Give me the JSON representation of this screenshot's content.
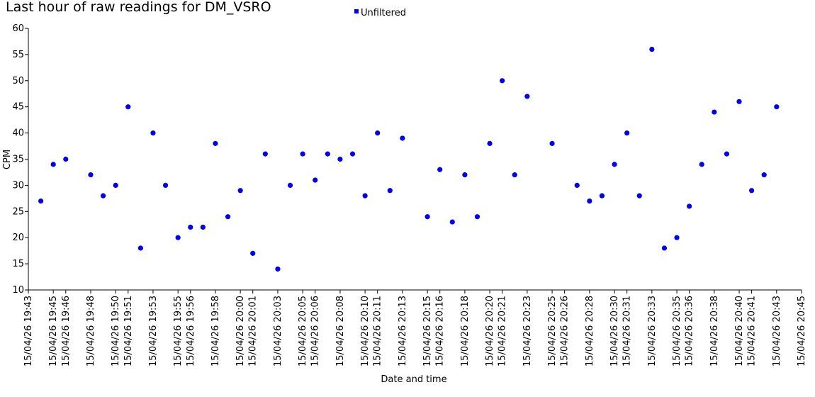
{
  "chart_data": {
    "type": "scatter",
    "title": "Last hour of raw readings for DM_VSRO",
    "xlabel": "Date and time",
    "ylabel": "CPM",
    "ylim": [
      10,
      60
    ],
    "yticks": [
      10,
      15,
      20,
      25,
      30,
      35,
      40,
      45,
      50,
      55,
      60
    ],
    "xticks": [
      "15/04/26 19:43",
      "15/04/26 19:45",
      "15/04/26 19:46",
      "15/04/26 19:48",
      "15/04/26 19:50",
      "15/04/26 19:51",
      "15/04/26 19:53",
      "15/04/26 19:55",
      "15/04/26 19:56",
      "15/04/26 19:58",
      "15/04/26 20:00",
      "15/04/26 20:01",
      "15/04/26 20:03",
      "15/04/26 20:05",
      "15/04/26 20:06",
      "15/04/26 20:08",
      "15/04/26 20:10",
      "15/04/26 20:11",
      "15/04/26 20:13",
      "15/04/26 20:15",
      "15/04/26 20:16",
      "15/04/26 20:18",
      "15/04/26 20:20",
      "15/04/26 20:21",
      "15/04/26 20:23",
      "15/04/26 20:25",
      "15/04/26 20:26",
      "15/04/26 20:28",
      "15/04/26 20:30",
      "15/04/26 20:31",
      "15/04/26 20:33",
      "15/04/26 20:35",
      "15/04/26 20:36",
      "15/04/26 20:38",
      "15/04/26 20:40",
      "15/04/26 20:41",
      "15/04/26 20:43",
      "15/04/26 20:45"
    ],
    "xlim": [
      "2026-04-15 19:43:00",
      "2026-04-15 20:45:00"
    ],
    "grid": false,
    "legend_position": "top-center",
    "series": [
      {
        "name": "Unfiltered",
        "color": "#0000ee",
        "points": [
          {
            "x": "2026-04-15 19:44:00",
            "y": 27
          },
          {
            "x": "2026-04-15 19:45:00",
            "y": 34
          },
          {
            "x": "2026-04-15 19:46:00",
            "y": 35
          },
          {
            "x": "2026-04-15 19:48:00",
            "y": 32
          },
          {
            "x": "2026-04-15 19:49:00",
            "y": 28
          },
          {
            "x": "2026-04-15 19:50:00",
            "y": 30
          },
          {
            "x": "2026-04-15 19:51:00",
            "y": 45
          },
          {
            "x": "2026-04-15 19:52:00",
            "y": 18
          },
          {
            "x": "2026-04-15 19:53:00",
            "y": 40
          },
          {
            "x": "2026-04-15 19:54:00",
            "y": 30
          },
          {
            "x": "2026-04-15 19:55:00",
            "y": 20
          },
          {
            "x": "2026-04-15 19:56:00",
            "y": 22
          },
          {
            "x": "2026-04-15 19:57:00",
            "y": 22
          },
          {
            "x": "2026-04-15 19:58:00",
            "y": 38
          },
          {
            "x": "2026-04-15 19:59:00",
            "y": 24
          },
          {
            "x": "2026-04-15 20:00:00",
            "y": 29
          },
          {
            "x": "2026-04-15 20:01:00",
            "y": 17
          },
          {
            "x": "2026-04-15 20:02:00",
            "y": 36
          },
          {
            "x": "2026-04-15 20:03:00",
            "y": 14
          },
          {
            "x": "2026-04-15 20:04:00",
            "y": 30
          },
          {
            "x": "2026-04-15 20:05:00",
            "y": 36
          },
          {
            "x": "2026-04-15 20:06:00",
            "y": 31
          },
          {
            "x": "2026-04-15 20:07:00",
            "y": 36
          },
          {
            "x": "2026-04-15 20:08:00",
            "y": 35
          },
          {
            "x": "2026-04-15 20:09:00",
            "y": 36
          },
          {
            "x": "2026-04-15 20:10:00",
            "y": 28
          },
          {
            "x": "2026-04-15 20:11:00",
            "y": 40
          },
          {
            "x": "2026-04-15 20:12:00",
            "y": 29
          },
          {
            "x": "2026-04-15 20:13:00",
            "y": 39
          },
          {
            "x": "2026-04-15 20:15:00",
            "y": 24
          },
          {
            "x": "2026-04-15 20:16:00",
            "y": 33
          },
          {
            "x": "2026-04-15 20:17:00",
            "y": 23
          },
          {
            "x": "2026-04-15 20:18:00",
            "y": 32
          },
          {
            "x": "2026-04-15 20:19:00",
            "y": 24
          },
          {
            "x": "2026-04-15 20:20:00",
            "y": 38
          },
          {
            "x": "2026-04-15 20:21:00",
            "y": 50
          },
          {
            "x": "2026-04-15 20:22:00",
            "y": 32
          },
          {
            "x": "2026-04-15 20:23:00",
            "y": 47
          },
          {
            "x": "2026-04-15 20:25:00",
            "y": 38
          },
          {
            "x": "2026-04-15 20:27:00",
            "y": 30
          },
          {
            "x": "2026-04-15 20:28:00",
            "y": 27
          },
          {
            "x": "2026-04-15 20:29:00",
            "y": 28
          },
          {
            "x": "2026-04-15 20:30:00",
            "y": 34
          },
          {
            "x": "2026-04-15 20:31:00",
            "y": 40
          },
          {
            "x": "2026-04-15 20:32:00",
            "y": 28
          },
          {
            "x": "2026-04-15 20:33:00",
            "y": 56
          },
          {
            "x": "2026-04-15 20:34:00",
            "y": 18
          },
          {
            "x": "2026-04-15 20:35:00",
            "y": 20
          },
          {
            "x": "2026-04-15 20:36:00",
            "y": 26
          },
          {
            "x": "2026-04-15 20:37:00",
            "y": 34
          },
          {
            "x": "2026-04-15 20:38:00",
            "y": 44
          },
          {
            "x": "2026-04-15 20:39:00",
            "y": 36
          },
          {
            "x": "2026-04-15 20:40:00",
            "y": 46
          },
          {
            "x": "2026-04-15 20:41:00",
            "y": 29
          },
          {
            "x": "2026-04-15 20:42:00",
            "y": 32
          },
          {
            "x": "2026-04-15 20:43:00",
            "y": 45
          }
        ]
      }
    ]
  }
}
